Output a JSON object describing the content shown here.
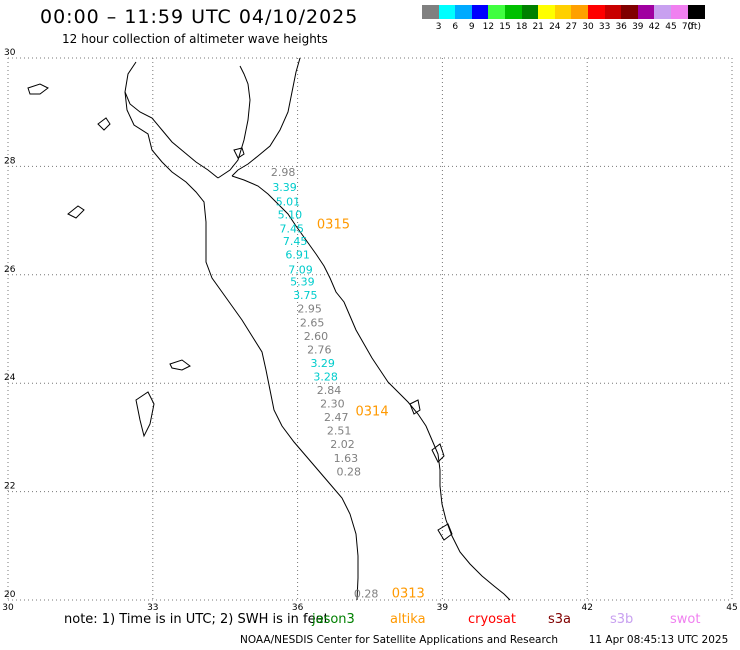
{
  "header": {
    "title": "00:00 – 11:59 UTC 04/10/2025",
    "subtitle": "12 hour collection of altimeter wave heights"
  },
  "colorbar": {
    "unit_label": "(ft)",
    "swatches": [
      {
        "label": "3",
        "color": "#808080"
      },
      {
        "label": "6",
        "color": "#00ffff"
      },
      {
        "label": "9",
        "color": "#00aaff"
      },
      {
        "label": "12",
        "color": "#0000ff"
      },
      {
        "label": "15",
        "color": "#40ff40"
      },
      {
        "label": "18",
        "color": "#00c000"
      },
      {
        "label": "21",
        "color": "#008000"
      },
      {
        "label": "24",
        "color": "#ffff00"
      },
      {
        "label": "27",
        "color": "#ffd000"
      },
      {
        "label": "30",
        "color": "#ffa000"
      },
      {
        "label": "33",
        "color": "#ff0000"
      },
      {
        "label": "36",
        "color": "#c80000"
      },
      {
        "label": "39",
        "color": "#800000"
      },
      {
        "label": "42",
        "color": "#a000a0"
      },
      {
        "label": "45",
        "color": "#c8a0f0"
      },
      {
        "label": "70",
        "color": "#f080f0"
      },
      {
        "label": "",
        "color": "#000000"
      }
    ]
  },
  "map": {
    "lon_range": [
      30,
      45
    ],
    "lat_range": [
      20,
      30
    ],
    "lat_ticks": [
      {
        "value": 30,
        "label": "30"
      },
      {
        "value": 28,
        "label": "28"
      },
      {
        "value": 26,
        "label": "26"
      },
      {
        "value": 24,
        "label": "24"
      },
      {
        "value": 22,
        "label": "22"
      },
      {
        "value": 20,
        "label": "20"
      }
    ],
    "lon_ticks": [
      {
        "value": 30,
        "label": "30"
      },
      {
        "value": 33,
        "label": "33"
      },
      {
        "value": 36,
        "label": "36"
      },
      {
        "value": 39,
        "label": "39"
      },
      {
        "value": 42,
        "label": "42"
      },
      {
        "value": 45,
        "label": "45"
      }
    ],
    "grid_color": "#777777",
    "coast_color": "#000000"
  },
  "wave_points": [
    {
      "lon": 35.7,
      "lat": 27.82,
      "value": "2.98",
      "color": "#808080"
    },
    {
      "lon": 35.73,
      "lat": 27.55,
      "value": "3.39",
      "color": "#00cccc"
    },
    {
      "lon": 35.8,
      "lat": 27.28,
      "value": "5.01",
      "color": "#00cccc"
    },
    {
      "lon": 35.84,
      "lat": 27.04,
      "value": "5.10",
      "color": "#00cccc"
    },
    {
      "lon": 35.88,
      "lat": 26.78,
      "value": "7.45",
      "color": "#00cccc"
    },
    {
      "lon": 35.95,
      "lat": 26.55,
      "value": "7.45",
      "color": "#00cccc"
    },
    {
      "lon": 36.0,
      "lat": 26.3,
      "value": "6.91",
      "color": "#00cccc"
    },
    {
      "lon": 36.06,
      "lat": 26.02,
      "value": "7.09",
      "color": "#00cccc"
    },
    {
      "lon": 36.1,
      "lat": 25.8,
      "value": "5.39",
      "color": "#00cccc"
    },
    {
      "lon": 36.16,
      "lat": 25.55,
      "value": "3.75",
      "color": "#00cccc"
    },
    {
      "lon": 36.25,
      "lat": 25.3,
      "value": "2.95",
      "color": "#808080"
    },
    {
      "lon": 36.3,
      "lat": 25.05,
      "value": "2.65",
      "color": "#808080"
    },
    {
      "lon": 36.38,
      "lat": 24.8,
      "value": "2.60",
      "color": "#808080"
    },
    {
      "lon": 36.45,
      "lat": 24.55,
      "value": "2.76",
      "color": "#808080"
    },
    {
      "lon": 36.52,
      "lat": 24.3,
      "value": "3.29",
      "color": "#00cccc"
    },
    {
      "lon": 36.58,
      "lat": 24.05,
      "value": "3.28",
      "color": "#00cccc"
    },
    {
      "lon": 36.65,
      "lat": 23.8,
      "value": "2.84",
      "color": "#808080"
    },
    {
      "lon": 36.72,
      "lat": 23.55,
      "value": "2.30",
      "color": "#808080"
    },
    {
      "lon": 36.8,
      "lat": 23.3,
      "value": "2.47",
      "color": "#808080"
    },
    {
      "lon": 36.86,
      "lat": 23.05,
      "value": "2.51",
      "color": "#808080"
    },
    {
      "lon": 36.93,
      "lat": 22.8,
      "value": "2.02",
      "color": "#808080"
    },
    {
      "lon": 37.0,
      "lat": 22.55,
      "value": "1.63",
      "color": "#808080"
    },
    {
      "lon": 37.06,
      "lat": 22.3,
      "value": "0.28",
      "color": "#808080"
    },
    {
      "lon": 37.42,
      "lat": 20.05,
      "value": "0.28",
      "color": "#808080"
    }
  ],
  "pass_labels": [
    {
      "lon": 36.4,
      "lat": 26.85,
      "text": "0315",
      "color": "#ff9900"
    },
    {
      "lon": 37.2,
      "lat": 23.4,
      "text": "0314",
      "color": "#ff9900"
    },
    {
      "lon": 37.95,
      "lat": 20.05,
      "text": "0313",
      "color": "#ff9900"
    }
  ],
  "note": "note:  1) Time is in UTC; 2) SWH is in feet",
  "satellites": [
    {
      "name": "jason3",
      "color": "#008000"
    },
    {
      "name": "altika",
      "color": "#ff9900"
    },
    {
      "name": "cryosat",
      "color": "#ff0000"
    },
    {
      "name": "s3a",
      "color": "#800000"
    },
    {
      "name": "s3b",
      "color": "#c8a0f0"
    },
    {
      "name": "swot",
      "color": "#f080f0"
    }
  ],
  "footer": {
    "agency": "NOAA/NESDIS Center for Satellite Applications and Research",
    "timestamp": "11 Apr 08:45:13 UTC 2025"
  }
}
